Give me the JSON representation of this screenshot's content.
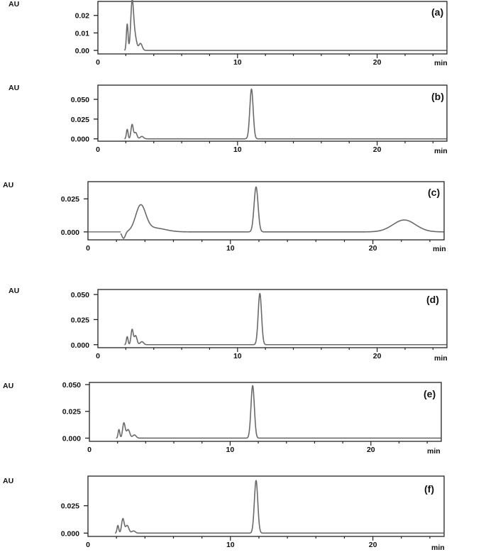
{
  "chart_data": [
    {
      "type": "line",
      "panel_label": "(a)",
      "y_unit": "AU",
      "x_unit": "min",
      "xlim": [
        0,
        25
      ],
      "ylim": [
        -0.002,
        0.028
      ],
      "x_ticks": [
        "0",
        "10",
        "20"
      ],
      "x_tick_values": [
        0,
        10,
        20
      ],
      "y_ticks": [
        "0.00",
        "0.01",
        "0.02"
      ],
      "y_tick_values": [
        0.0,
        0.01,
        0.02
      ],
      "peaks": [
        {
          "rt": 2.1,
          "height": 0.015,
          "width": 0.06
        },
        {
          "rt": 2.45,
          "height": 0.027,
          "width": 0.1
        },
        {
          "rt": 2.65,
          "height": 0.008,
          "width": 0.12
        },
        {
          "rt": 3.05,
          "height": 0.004,
          "width": 0.12
        }
      ],
      "baseline_noise": 0
    },
    {
      "type": "line",
      "panel_label": "(b)",
      "y_unit": "AU",
      "x_unit": "min",
      "xlim": [
        0,
        25
      ],
      "ylim": [
        -0.003,
        0.068
      ],
      "x_ticks": [
        "0",
        "10",
        "20"
      ],
      "x_tick_values": [
        0,
        10,
        20
      ],
      "y_ticks": [
        "0.000",
        "0.025",
        "0.050"
      ],
      "y_tick_values": [
        0.0,
        0.025,
        0.05
      ],
      "peaks": [
        {
          "rt": 2.1,
          "height": 0.012,
          "width": 0.06
        },
        {
          "rt": 2.45,
          "height": 0.018,
          "width": 0.08
        },
        {
          "rt": 2.7,
          "height": 0.008,
          "width": 0.1
        },
        {
          "rt": 3.15,
          "height": 0.003,
          "width": 0.12
        },
        {
          "rt": 11.0,
          "height": 0.063,
          "width": 0.12
        }
      ],
      "baseline_noise": 0
    },
    {
      "type": "line",
      "panel_label": "(c)",
      "y_unit": "AU",
      "x_unit": "min",
      "xlim": [
        0,
        25
      ],
      "ylim": [
        -0.006,
        0.038
      ],
      "x_ticks": [
        "0",
        "10",
        "20"
      ],
      "x_tick_values": [
        0,
        10,
        20
      ],
      "y_ticks": [
        "0.000",
        "0.025"
      ],
      "y_tick_values": [
        0.0,
        0.025
      ],
      "peaks": [
        {
          "rt": 2.5,
          "height": -0.005,
          "width": 0.12
        },
        {
          "rt": 3.7,
          "height": 0.019,
          "width": 0.35
        },
        {
          "rt": 4.6,
          "height": 0.003,
          "width": 0.8
        },
        {
          "rt": 11.8,
          "height": 0.034,
          "width": 0.14
        },
        {
          "rt": 22.2,
          "height": 0.009,
          "width": 0.8
        }
      ],
      "baseline_start": 2.3,
      "baseline_noise": 0
    },
    {
      "type": "line",
      "panel_label": "(d)",
      "y_unit": "AU",
      "x_unit": "min",
      "xlim": [
        0,
        25
      ],
      "ylim": [
        -0.003,
        0.055
      ],
      "x_ticks": [
        "0",
        "10",
        "20"
      ],
      "x_tick_values": [
        0,
        10,
        20
      ],
      "y_ticks": [
        "0.000",
        "0.025",
        "0.050"
      ],
      "y_tick_values": [
        0.0,
        0.025,
        0.05
      ],
      "peaks": [
        {
          "rt": 2.1,
          "height": 0.008,
          "width": 0.06
        },
        {
          "rt": 2.45,
          "height": 0.015,
          "width": 0.08
        },
        {
          "rt": 2.7,
          "height": 0.009,
          "width": 0.1
        },
        {
          "rt": 3.15,
          "height": 0.003,
          "width": 0.12
        },
        {
          "rt": 11.6,
          "height": 0.051,
          "width": 0.12
        }
      ],
      "baseline_noise": 0
    },
    {
      "type": "line",
      "panel_label": "(e)",
      "y_unit": "AU",
      "x_unit": "min",
      "xlim": [
        0,
        25
      ],
      "ylim": [
        -0.003,
        0.052
      ],
      "x_ticks": [
        "0",
        "10",
        "20"
      ],
      "x_tick_values": [
        0,
        10,
        20
      ],
      "y_ticks": [
        "0.000",
        "0.025",
        "0.050"
      ],
      "y_tick_values": [
        0.0,
        0.025,
        0.05
      ],
      "peaks": [
        {
          "rt": 2.1,
          "height": 0.008,
          "width": 0.06
        },
        {
          "rt": 2.45,
          "height": 0.014,
          "width": 0.09
        },
        {
          "rt": 2.75,
          "height": 0.008,
          "width": 0.12
        },
        {
          "rt": 3.2,
          "height": 0.003,
          "width": 0.12
        },
        {
          "rt": 11.6,
          "height": 0.049,
          "width": 0.12
        }
      ],
      "baseline_noise": 0
    },
    {
      "type": "line",
      "panel_label": "(f)",
      "y_unit": "AU",
      "x_unit": "min",
      "xlim": [
        0,
        25
      ],
      "ylim": [
        -0.003,
        0.052
      ],
      "x_ticks": [
        "0",
        "10",
        "20"
      ],
      "x_tick_values": [
        0,
        10,
        20
      ],
      "y_ticks": [
        "0.000",
        "0.025"
      ],
      "y_tick_values": [
        0.0,
        0.025
      ],
      "peaks": [
        {
          "rt": 2.1,
          "height": 0.007,
          "width": 0.06
        },
        {
          "rt": 2.45,
          "height": 0.013,
          "width": 0.09
        },
        {
          "rt": 2.75,
          "height": 0.007,
          "width": 0.12
        },
        {
          "rt": 3.2,
          "height": 0.002,
          "width": 0.12
        },
        {
          "rt": 11.8,
          "height": 0.048,
          "width": 0.12
        }
      ],
      "baseline_noise": 0
    }
  ],
  "colors": {
    "trace": "#6a6a6a",
    "axis": "#222222",
    "text": "#111111"
  }
}
